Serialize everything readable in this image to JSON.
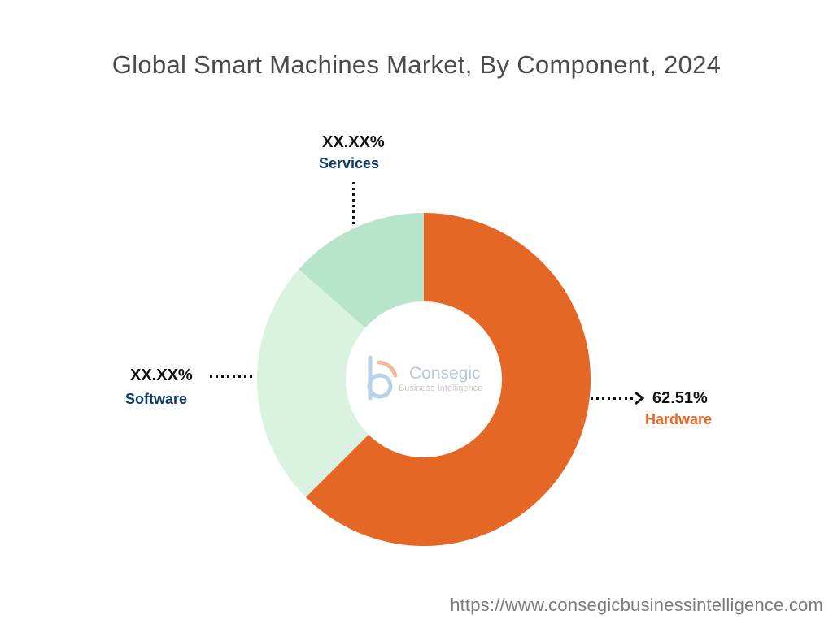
{
  "title": "Global Smart Machines Market, By Component, 2024",
  "watermark": {
    "brand": "Consegic",
    "sub": "Business Intelligence",
    "url": "https://www.consegicbusinessintelligence.com"
  },
  "colors": {
    "hardware": "#E46726",
    "software": "#DAF3E0",
    "services": "#B6E5CB",
    "software_label": "#0D3B66",
    "hardware_label": "#E46726"
  },
  "chart_data": {
    "type": "pie",
    "donut": true,
    "title": "Global Smart Machines Market, By Component, 2024",
    "slices": [
      {
        "name": "Hardware",
        "value": 62.51,
        "label": "62.51%"
      },
      {
        "name": "Software",
        "value": 24.0,
        "label": "XX.XX%"
      },
      {
        "name": "Services",
        "value": 13.49,
        "label": "XX.XX%"
      }
    ]
  }
}
